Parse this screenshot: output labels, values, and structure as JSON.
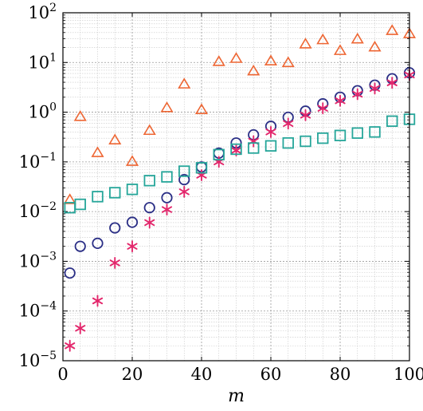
{
  "chart_data": {
    "type": "scatter",
    "title": "",
    "xlabel": "m",
    "ylabel": "",
    "xlim": [
      0,
      100
    ],
    "ylim": [
      1e-05,
      100
    ],
    "yscale": "log",
    "grid": true,
    "legend": "none",
    "x_ticks": [
      {
        "value": 0,
        "label": "0"
      },
      {
        "value": 20,
        "label": "20"
      },
      {
        "value": 40,
        "label": "40"
      },
      {
        "value": 60,
        "label": "60"
      },
      {
        "value": 80,
        "label": "80"
      },
      {
        "value": 100,
        "label": "100"
      }
    ],
    "y_ticks": [
      {
        "value": 1e-05,
        "base": "10",
        "exp": "−5"
      },
      {
        "value": 0.0001,
        "base": "10",
        "exp": "−4"
      },
      {
        "value": 0.001,
        "base": "10",
        "exp": "−3"
      },
      {
        "value": 0.01,
        "base": "10",
        "exp": "−2"
      },
      {
        "value": 0.1,
        "base": "10",
        "exp": "−1"
      },
      {
        "value": 1,
        "base": "10",
        "exp": "0"
      },
      {
        "value": 10,
        "base": "10",
        "exp": "1"
      },
      {
        "value": 100,
        "base": "10",
        "exp": "2"
      }
    ],
    "series": [
      {
        "marker": "triangle",
        "color": "#ee6633",
        "x": [
          2,
          5,
          10,
          15,
          20,
          25,
          30,
          35,
          40,
          45,
          50,
          55,
          60,
          65,
          70,
          75,
          80,
          85,
          90,
          95,
          100
        ],
        "y": [
          0.017,
          0.8,
          0.15,
          0.27,
          0.1,
          0.42,
          1.2,
          3.6,
          1.1,
          10.2,
          11.8,
          6.6,
          10.5,
          9.7,
          23,
          28,
          17,
          29,
          20,
          43,
          37
        ]
      },
      {
        "marker": "circle",
        "color": "#2b2f86",
        "x": [
          2,
          5,
          10,
          15,
          20,
          25,
          30,
          35,
          40,
          45,
          50,
          55,
          60,
          65,
          70,
          75,
          80,
          85,
          90,
          95,
          100
        ],
        "y": [
          0.00058,
          0.002,
          0.0023,
          0.0047,
          0.0061,
          0.012,
          0.019,
          0.044,
          0.079,
          0.15,
          0.24,
          0.35,
          0.52,
          0.79,
          1.05,
          1.47,
          2.0,
          2.7,
          3.5,
          4.7,
          6.2
        ]
      },
      {
        "marker": "asterisk",
        "color": "#e3266b",
        "x": [
          2,
          5,
          10,
          15,
          20,
          25,
          30,
          35,
          40,
          45,
          50,
          55,
          60,
          65,
          70,
          75,
          80,
          85,
          90,
          95,
          100
        ],
        "y": [
          2e-05,
          4.5e-05,
          0.00016,
          0.00093,
          0.002,
          0.006,
          0.011,
          0.025,
          0.054,
          0.1,
          0.17,
          0.26,
          0.4,
          0.59,
          0.87,
          1.2,
          1.7,
          2.3,
          3.0,
          3.9,
          5.6
        ]
      },
      {
        "marker": "square",
        "color": "#26a69a",
        "x": [
          2,
          5,
          10,
          15,
          20,
          25,
          30,
          35,
          40,
          45,
          50,
          55,
          60,
          65,
          70,
          75,
          80,
          85,
          90,
          95,
          100
        ],
        "y": [
          0.012,
          0.014,
          0.02,
          0.024,
          0.028,
          0.042,
          0.05,
          0.065,
          0.076,
          0.14,
          0.18,
          0.19,
          0.21,
          0.24,
          0.26,
          0.3,
          0.34,
          0.38,
          0.4,
          0.66,
          0.72
        ]
      }
    ]
  }
}
